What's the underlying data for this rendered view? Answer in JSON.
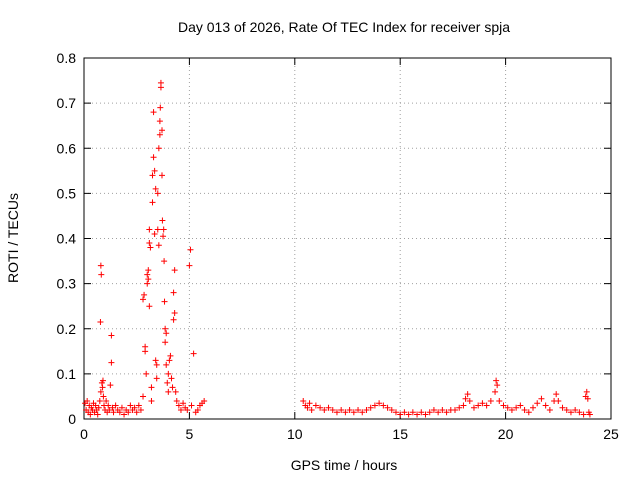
{
  "chart_data": {
    "type": "scatter",
    "title": "Day 013 of 2026, Rate Of TEC Index for receiver spja",
    "xlabel": "GPS time / hours",
    "ylabel": "ROTI / TECUs",
    "xlim": [
      0,
      25
    ],
    "ylim": [
      0,
      0.8
    ],
    "grid": true,
    "xticks": [
      0,
      5,
      10,
      15,
      20,
      25
    ],
    "yticks": [
      0,
      0.1,
      0.2,
      0.3,
      0.4,
      0.5,
      0.6,
      0.7,
      0.8
    ],
    "xtick_labels": [
      "0",
      "5",
      "10",
      "15",
      "20",
      "25"
    ],
    "ytick_labels": [
      "0",
      "0.1",
      "0.2",
      "0.3",
      "0.4",
      "0.5",
      "0.6",
      "0.7",
      "0.8"
    ],
    "marker": "+",
    "color": "#ff0000",
    "series": [
      {
        "name": "ROTI",
        "points": [
          [
            0.05,
            0.035
          ],
          [
            0.1,
            0.02
          ],
          [
            0.15,
            0.04
          ],
          [
            0.2,
            0.015
          ],
          [
            0.25,
            0.03
          ],
          [
            0.3,
            0.01
          ],
          [
            0.35,
            0.025
          ],
          [
            0.4,
            0.02
          ],
          [
            0.45,
            0.035
          ],
          [
            0.5,
            0.015
          ],
          [
            0.55,
            0.03
          ],
          [
            0.6,
            0.02
          ],
          [
            0.65,
            0.01
          ],
          [
            0.7,
            0.025
          ],
          [
            0.75,
            0.04
          ],
          [
            0.8,
            0.06
          ],
          [
            0.8,
            0.34
          ],
          [
            0.82,
            0.32
          ],
          [
            0.78,
            0.215
          ],
          [
            0.85,
            0.08
          ],
          [
            0.88,
            0.07
          ],
          [
            0.9,
            0.085
          ],
          [
            0.92,
            0.05
          ],
          [
            0.95,
            0.03
          ],
          [
            1.0,
            0.02
          ],
          [
            1.05,
            0.04
          ],
          [
            1.1,
            0.015
          ],
          [
            1.15,
            0.03
          ],
          [
            1.2,
            0.02
          ],
          [
            1.25,
            0.075
          ],
          [
            1.3,
            0.185
          ],
          [
            1.3,
            0.125
          ],
          [
            1.35,
            0.025
          ],
          [
            1.4,
            0.015
          ],
          [
            1.5,
            0.03
          ],
          [
            1.6,
            0.02
          ],
          [
            1.7,
            0.015
          ],
          [
            1.8,
            0.025
          ],
          [
            1.9,
            0.01
          ],
          [
            2.0,
            0.02
          ],
          [
            2.1,
            0.015
          ],
          [
            2.2,
            0.03
          ],
          [
            2.3,
            0.02
          ],
          [
            2.4,
            0.025
          ],
          [
            2.5,
            0.015
          ],
          [
            2.6,
            0.03
          ],
          [
            2.7,
            0.02
          ],
          [
            2.8,
            0.05
          ],
          [
            2.8,
            0.265
          ],
          [
            2.85,
            0.275
          ],
          [
            2.9,
            0.16
          ],
          [
            2.9,
            0.15
          ],
          [
            2.95,
            0.1
          ],
          [
            3.0,
            0.3
          ],
          [
            3.0,
            0.32
          ],
          [
            3.05,
            0.33
          ],
          [
            3.05,
            0.31
          ],
          [
            3.1,
            0.39
          ],
          [
            3.1,
            0.42
          ],
          [
            3.1,
            0.25
          ],
          [
            3.15,
            0.38
          ],
          [
            3.2,
            0.07
          ],
          [
            3.2,
            0.04
          ],
          [
            3.25,
            0.48
          ],
          [
            3.25,
            0.54
          ],
          [
            3.3,
            0.58
          ],
          [
            3.3,
            0.68
          ],
          [
            3.35,
            0.55
          ],
          [
            3.35,
            0.41
          ],
          [
            3.4,
            0.51
          ],
          [
            3.4,
            0.13
          ],
          [
            3.45,
            0.12
          ],
          [
            3.45,
            0.09
          ],
          [
            3.5,
            0.42
          ],
          [
            3.5,
            0.5
          ],
          [
            3.55,
            0.6
          ],
          [
            3.55,
            0.385
          ],
          [
            3.6,
            0.63
          ],
          [
            3.6,
            0.66
          ],
          [
            3.62,
            0.69
          ],
          [
            3.65,
            0.745
          ],
          [
            3.65,
            0.735
          ],
          [
            3.7,
            0.64
          ],
          [
            3.7,
            0.54
          ],
          [
            3.72,
            0.44
          ],
          [
            3.75,
            0.405
          ],
          [
            3.78,
            0.42
          ],
          [
            3.8,
            0.35
          ],
          [
            3.82,
            0.26
          ],
          [
            3.85,
            0.2
          ],
          [
            3.85,
            0.17
          ],
          [
            3.9,
            0.19
          ],
          [
            3.9,
            0.12
          ],
          [
            3.95,
            0.08
          ],
          [
            4.0,
            0.1
          ],
          [
            4.0,
            0.06
          ],
          [
            4.05,
            0.13
          ],
          [
            4.1,
            0.14
          ],
          [
            4.15,
            0.09
          ],
          [
            4.2,
            0.07
          ],
          [
            4.25,
            0.22
          ],
          [
            4.25,
            0.28
          ],
          [
            4.3,
            0.235
          ],
          [
            4.3,
            0.33
          ],
          [
            4.35,
            0.06
          ],
          [
            4.4,
            0.04
          ],
          [
            4.5,
            0.03
          ],
          [
            4.6,
            0.02
          ],
          [
            4.7,
            0.035
          ],
          [
            4.8,
            0.025
          ],
          [
            4.9,
            0.02
          ],
          [
            5.0,
            0.34
          ],
          [
            5.05,
            0.375
          ],
          [
            5.1,
            0.03
          ],
          [
            5.2,
            0.145
          ],
          [
            5.3,
            0.015
          ],
          [
            5.4,
            0.02
          ],
          [
            5.5,
            0.03
          ],
          [
            5.6,
            0.035
          ],
          [
            5.7,
            0.04
          ],
          [
            10.4,
            0.04
          ],
          [
            10.5,
            0.03
          ],
          [
            10.6,
            0.025
          ],
          [
            10.7,
            0.035
          ],
          [
            10.8,
            0.02
          ],
          [
            11.0,
            0.03
          ],
          [
            11.2,
            0.025
          ],
          [
            11.4,
            0.02
          ],
          [
            11.6,
            0.025
          ],
          [
            11.8,
            0.02
          ],
          [
            12.0,
            0.015
          ],
          [
            12.2,
            0.02
          ],
          [
            12.4,
            0.015
          ],
          [
            12.6,
            0.02
          ],
          [
            12.8,
            0.015
          ],
          [
            13.0,
            0.02
          ],
          [
            13.2,
            0.015
          ],
          [
            13.4,
            0.02
          ],
          [
            13.6,
            0.025
          ],
          [
            13.8,
            0.03
          ],
          [
            14.0,
            0.035
          ],
          [
            14.2,
            0.03
          ],
          [
            14.4,
            0.025
          ],
          [
            14.6,
            0.02
          ],
          [
            14.8,
            0.015
          ],
          [
            15.0,
            0.01
          ],
          [
            15.2,
            0.015
          ],
          [
            15.4,
            0.01
          ],
          [
            15.6,
            0.015
          ],
          [
            15.8,
            0.01
          ],
          [
            16.0,
            0.015
          ],
          [
            16.2,
            0.01
          ],
          [
            16.4,
            0.015
          ],
          [
            16.6,
            0.02
          ],
          [
            16.8,
            0.015
          ],
          [
            17.0,
            0.02
          ],
          [
            17.2,
            0.015
          ],
          [
            17.4,
            0.02
          ],
          [
            17.6,
            0.02
          ],
          [
            17.8,
            0.025
          ],
          [
            18.0,
            0.03
          ],
          [
            18.1,
            0.045
          ],
          [
            18.2,
            0.055
          ],
          [
            18.3,
            0.04
          ],
          [
            18.5,
            0.025
          ],
          [
            18.7,
            0.03
          ],
          [
            18.9,
            0.035
          ],
          [
            19.1,
            0.03
          ],
          [
            19.3,
            0.04
          ],
          [
            19.5,
            0.06
          ],
          [
            19.55,
            0.085
          ],
          [
            19.6,
            0.075
          ],
          [
            19.7,
            0.04
          ],
          [
            19.9,
            0.03
          ],
          [
            20.1,
            0.025
          ],
          [
            20.3,
            0.02
          ],
          [
            20.5,
            0.025
          ],
          [
            20.7,
            0.03
          ],
          [
            20.9,
            0.02
          ],
          [
            21.1,
            0.015
          ],
          [
            21.3,
            0.025
          ],
          [
            21.5,
            0.035
          ],
          [
            21.7,
            0.045
          ],
          [
            21.9,
            0.03
          ],
          [
            22.1,
            0.02
          ],
          [
            22.3,
            0.04
          ],
          [
            22.4,
            0.055
          ],
          [
            22.5,
            0.04
          ],
          [
            22.7,
            0.025
          ],
          [
            22.9,
            0.02
          ],
          [
            23.1,
            0.015
          ],
          [
            23.3,
            0.02
          ],
          [
            23.5,
            0.015
          ],
          [
            23.7,
            0.01
          ],
          [
            23.8,
            0.05
          ],
          [
            23.85,
            0.06
          ],
          [
            23.9,
            0.045
          ],
          [
            23.95,
            0.015
          ],
          [
            24.0,
            0.01
          ]
        ]
      }
    ]
  }
}
